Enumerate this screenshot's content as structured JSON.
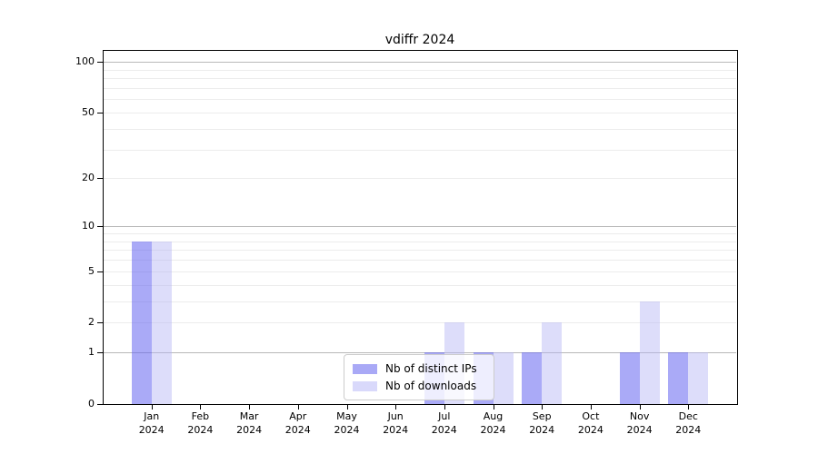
{
  "title": "vdiffr 2024",
  "axes": {
    "y_tick_labels": [
      "0",
      "1",
      "2",
      "5",
      "10",
      "20",
      "50",
      "100"
    ],
    "x_year": "2024"
  },
  "legend": {
    "items": [
      {
        "label": "Nb of distinct IPs",
        "color": "#a9a9f6"
      },
      {
        "label": "Nb of downloads",
        "color": "#d9d9fb"
      }
    ]
  },
  "chart_data": {
    "type": "bar",
    "title": "vdiffr 2024",
    "categories": [
      "Jan 2024",
      "Feb 2024",
      "Mar 2024",
      "Apr 2024",
      "May 2024",
      "Jun 2024",
      "Jul 2024",
      "Aug 2024",
      "Sep 2024",
      "Oct 2024",
      "Nov 2024",
      "Dec 2024"
    ],
    "month_labels": [
      "Jan",
      "Feb",
      "Mar",
      "Apr",
      "May",
      "Jun",
      "Jul",
      "Aug",
      "Sep",
      "Oct",
      "Nov",
      "Dec"
    ],
    "year": "2024",
    "series": [
      {
        "name": "Nb of distinct IPs",
        "key": "distinct-ips",
        "color": "#a9a9f6",
        "fill": "rgba(100,100,240,0.55)",
        "values": [
          8,
          0,
          0,
          0,
          0,
          0,
          1,
          1,
          1,
          0,
          1,
          1
        ]
      },
      {
        "name": "Nb of downloads",
        "key": "downloads",
        "color": "#d9d9fb",
        "fill": "rgba(180,180,245,0.45)",
        "values": [
          8,
          0,
          0,
          0,
          0,
          0,
          2,
          1,
          2,
          0,
          3,
          1
        ]
      }
    ],
    "yscale": "log1p",
    "ylim": [
      0,
      118
    ],
    "y_ticks": [
      0,
      1,
      2,
      5,
      10,
      20,
      50,
      100
    ],
    "y_gridlines_major": [
      1,
      10,
      100
    ],
    "y_gridlines_minor": [
      2,
      3,
      4,
      5,
      6,
      7,
      8,
      9,
      20,
      30,
      40,
      50,
      60,
      70,
      80,
      90
    ],
    "grid": true,
    "xlabel": "",
    "ylabel": "",
    "legend_position": "inside bottom-center"
  }
}
